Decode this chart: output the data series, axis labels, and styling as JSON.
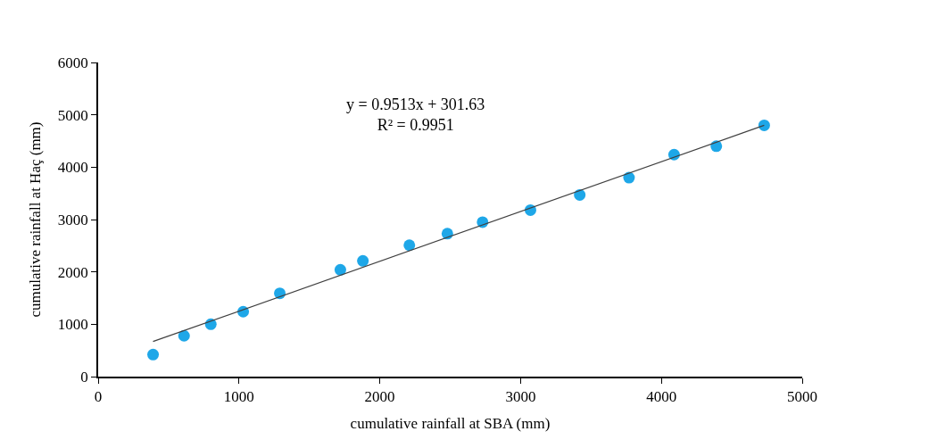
{
  "chart_data": {
    "type": "scatter",
    "xlabel": "cumulative rainfall at SBA (mm)",
    "ylabel": "cumulative rainfall at Haç (mm)",
    "x": [
      390,
      610,
      800,
      1030,
      1290,
      1720,
      1880,
      2210,
      2480,
      2730,
      3070,
      3420,
      3770,
      4090,
      4390,
      4730
    ],
    "series": [
      {
        "color": "#1ea7e8",
        "marker": "circle",
        "values": [
          420,
          780,
          1000,
          1240,
          1590,
          2040,
          2210,
          2510,
          2730,
          2950,
          3180,
          3470,
          3800,
          4240,
          4400,
          4800
        ]
      },
      {
        "type": "line",
        "marker": "none",
        "color": "#404040",
        "x": [
          390,
          4730
        ],
        "values": [
          670,
          4800
        ]
      }
    ],
    "annotations": [
      "y = 0.9513x + 301.63\nR² = 0.9951"
    ],
    "xlim": [
      0,
      5000
    ],
    "xticks": [
      0,
      1000,
      2000,
      3000,
      4000,
      5000
    ],
    "ylim": [
      0,
      6000
    ],
    "yticks": [
      0,
      1000,
      2000,
      3000,
      4000,
      5000,
      6000
    ],
    "grid": false,
    "legend": false
  }
}
